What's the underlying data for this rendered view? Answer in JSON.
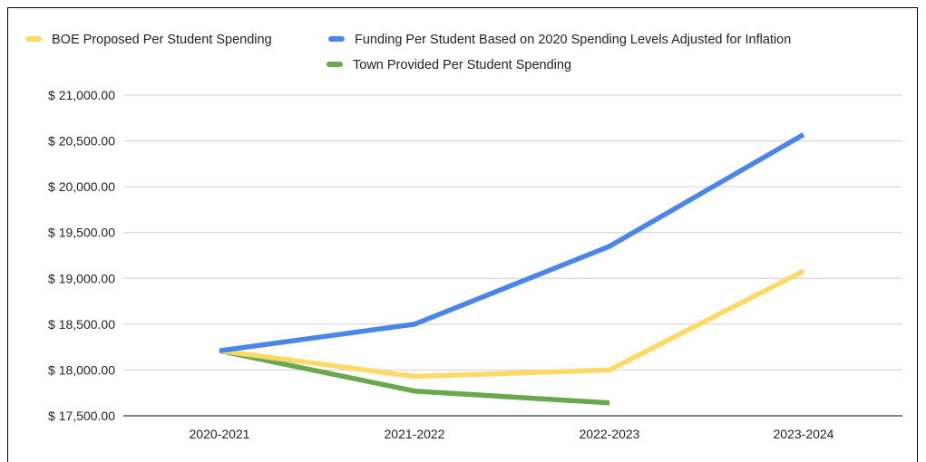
{
  "chart_data": {
    "type": "line",
    "categories": [
      "2020-2021",
      "2021-2022",
      "2022-2023",
      "2023-2024"
    ],
    "series": [
      {
        "name": "BOE Proposed Per Student Spending",
        "color": "#ffd966",
        "values": [
          18210,
          17930,
          18000,
          19080
        ]
      },
      {
        "name": "Funding Per Student Based on 2020 Spending Levels Adjusted for Inflation",
        "color": "#4a86e8",
        "values": [
          18210,
          18500,
          19350,
          20570
        ]
      },
      {
        "name": "Town Provided Per Student Spending",
        "color": "#6aa84f",
        "values": [
          18210,
          17770,
          17640,
          null
        ]
      }
    ],
    "yticks": [
      "$ 17,500.00",
      "$ 18,000.00",
      "$ 18,500.00",
      "$ 19,000.00",
      "$ 19,500.00",
      "$ 20,000.00",
      "$ 20,500.00",
      "$ 21,000.00"
    ],
    "ylim": [
      17500,
      21000
    ],
    "grid": true,
    "legend_position": "top"
  }
}
